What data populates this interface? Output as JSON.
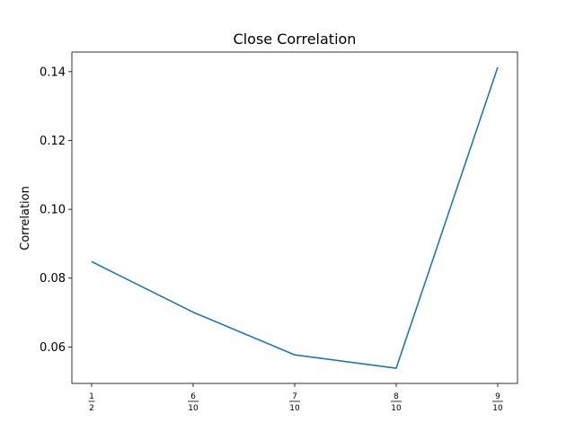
{
  "chart_data": {
    "type": "line",
    "title": "Close Correlation",
    "xlabel": "",
    "ylabel": "Correlation",
    "categories": [
      {
        "num": "1",
        "den": "2"
      },
      {
        "num": "6",
        "den": "10"
      },
      {
        "num": "7",
        "den": "10"
      },
      {
        "num": "8",
        "den": "10"
      },
      {
        "num": "9",
        "den": "10"
      }
    ],
    "series": [
      {
        "values": [
          0.0848,
          0.0701,
          0.0577,
          0.0538,
          0.1413
        ],
        "color": "#1f77b4"
      }
    ],
    "yticks": [
      0.06,
      0.08,
      0.1,
      0.12,
      0.14
    ],
    "ytick_labels": [
      "0.06",
      "0.08",
      "0.10",
      "0.12",
      "0.14"
    ],
    "ylim": [
      0.0494,
      0.1457
    ],
    "grid": false,
    "legend": "none"
  }
}
